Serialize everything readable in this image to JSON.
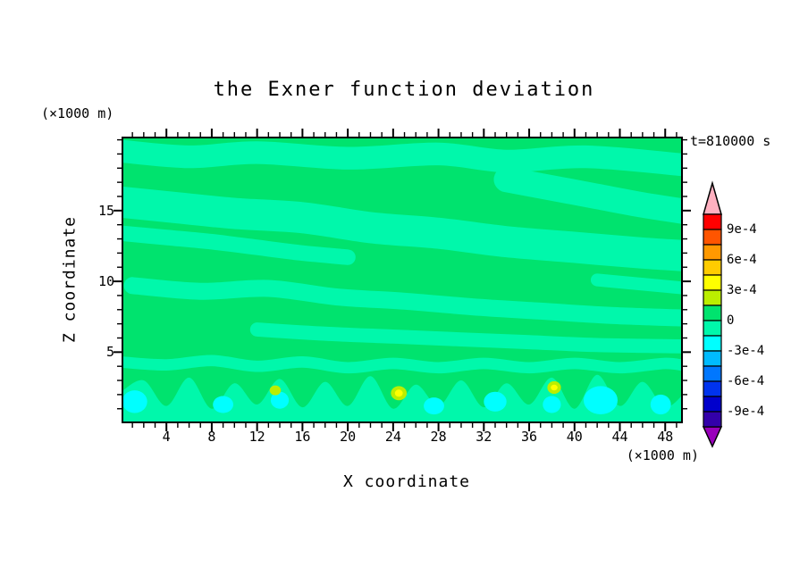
{
  "title": "the Exner function deviation",
  "time_label": "t=810000 s",
  "y_unit_label": "(×1000 m)",
  "x_unit_label": "(×1000 m)",
  "axes": {
    "x": {
      "label": "X coordinate",
      "min": 0.2,
      "max": 49.4,
      "major_ticks": [
        4,
        8,
        12,
        16,
        20,
        24,
        28,
        32,
        36,
        40,
        44,
        48
      ],
      "minor_step": 1
    },
    "y": {
      "label": "Z coordinate",
      "min": 0.1,
      "max": 20.1,
      "major_ticks": [
        5,
        10,
        15
      ],
      "minor_step": 1
    }
  },
  "colorbar": {
    "labels": [
      "9e-4",
      "6e-4",
      "3e-4",
      "0",
      "-3e-4",
      "-6e-4",
      "-9e-4"
    ],
    "range": [
      -0.00105,
      0.00105
    ],
    "step": 0.00015,
    "segment_colors_top_to_bottom": [
      "#ff0000",
      "#ff5500",
      "#ff9900",
      "#ffcc00",
      "#ffff00",
      "#bbee00",
      "#00e36e",
      "#00f8ab",
      "#00ffff",
      "#00bbff",
      "#0077ff",
      "#0033ee",
      "#0000cc",
      "#3300aa"
    ],
    "arrow_top_color": "#ffb0c0",
    "arrow_bottom_color": "#9900bb"
  },
  "chart_data": {
    "type": "heatmap",
    "title": "the Exner function deviation",
    "xlabel": "X coordinate (×1000 m)",
    "ylabel": "Z coordinate (×1000 m)",
    "time": "t=810000 s",
    "xlim": [
      0,
      50
    ],
    "ylim": [
      0,
      20
    ],
    "contour_interval": 0.00015,
    "labeled_levels": [
      -0.0009,
      -0.0006,
      -0.0003,
      0,
      0.0003,
      0.0006,
      0.0009
    ],
    "contour_levels": [
      -0.00105,
      -0.0009,
      -0.00075,
      -0.0006,
      -0.00045,
      -0.0003,
      -0.00015,
      0,
      0.00015,
      0.0003,
      0.00045,
      0.0006,
      0.00075,
      0.0009,
      0.00105
    ],
    "field_summary": "Exner function deviation near zero everywhere: background in the 0 to 1.5e-4 band (green) with wavy quasi-horizontal bands of -1.5e-4 to 0 (light spring green) tilting downward toward +x in the upper half; a scalloped light band with cyan cores (-3e-4 to -1.5e-4) and a few small positive yellow spots (3e-4 to 4.5e-4) in the lowest 3 km.",
    "palette": {
      "bg": "#00e36e",
      "band": "#00f8ab",
      "cyan": "#00ffff",
      "yellowgreen": "#bbee00",
      "yellow": "#ffff00"
    },
    "value_by_color": {
      "bg": "0 to 1.5e-4",
      "band": "-1.5e-4 to 0",
      "cyan": "-3e-4 to -1.5e-4",
      "yellowgreen": "1.5e-4 to 3e-4",
      "yellow": "3e-4 to 4.5e-4"
    },
    "features": [
      {
        "type": "stroke",
        "color": "band",
        "width": 1.6,
        "points": [
          [
            0,
            19.2
          ],
          [
            6,
            18.8
          ],
          [
            12,
            19.1
          ],
          [
            20,
            18.7
          ],
          [
            28,
            19.0
          ],
          [
            34,
            18.5
          ],
          [
            41,
            18.8
          ],
          [
            50,
            18.2
          ]
        ]
      },
      {
        "type": "stroke",
        "color": "band",
        "width": 1.8,
        "points": [
          [
            34,
            17.2
          ],
          [
            38,
            16.6
          ],
          [
            42,
            16.0
          ],
          [
            46,
            15.4
          ],
          [
            50,
            14.9
          ]
        ]
      },
      {
        "type": "stroke",
        "color": "band",
        "width": 2.2,
        "points": [
          [
            0,
            15.6
          ],
          [
            5,
            15.2
          ],
          [
            10,
            14.8
          ],
          [
            16,
            14.5
          ],
          [
            22,
            13.8
          ],
          [
            28,
            13.4
          ],
          [
            34,
            12.8
          ],
          [
            40,
            12.4
          ],
          [
            46,
            12.0
          ],
          [
            50,
            11.8
          ]
        ]
      },
      {
        "type": "stroke",
        "color": "band",
        "width": 1.1,
        "points": [
          [
            0,
            13.4
          ],
          [
            4,
            13.1
          ],
          [
            8,
            12.8
          ],
          [
            12,
            12.4
          ],
          [
            16,
            12.0
          ],
          [
            20,
            11.7
          ]
        ]
      },
      {
        "type": "stroke",
        "color": "band",
        "width": 1.2,
        "points": [
          [
            1,
            9.7
          ],
          [
            7,
            9.3
          ],
          [
            13,
            9.5
          ],
          [
            19,
            8.9
          ],
          [
            25,
            8.6
          ],
          [
            31,
            8.2
          ],
          [
            37,
            7.9
          ],
          [
            43,
            7.6
          ],
          [
            50,
            7.4
          ]
        ]
      },
      {
        "type": "stroke",
        "color": "band",
        "width": 1.0,
        "points": [
          [
            12,
            6.6
          ],
          [
            18,
            6.3
          ],
          [
            24,
            6.1
          ],
          [
            30,
            5.9
          ],
          [
            36,
            5.7
          ],
          [
            42,
            5.5
          ],
          [
            50,
            5.4
          ]
        ]
      },
      {
        "type": "stroke",
        "color": "band",
        "width": 0.9,
        "points": [
          [
            42,
            10.1
          ],
          [
            46,
            9.8
          ],
          [
            50,
            9.5
          ]
        ]
      },
      {
        "type": "stroke",
        "color": "band",
        "width": 0.8,
        "points": [
          [
            0,
            4.3
          ],
          [
            4,
            4.1
          ],
          [
            8,
            4.4
          ],
          [
            12,
            4.0
          ],
          [
            16,
            4.3
          ],
          [
            20,
            3.9
          ],
          [
            24,
            4.2
          ],
          [
            28,
            3.9
          ],
          [
            32,
            4.2
          ],
          [
            36,
            3.9
          ],
          [
            40,
            4.2
          ],
          [
            44,
            3.9
          ],
          [
            48,
            4.2
          ],
          [
            50,
            4.0
          ]
        ]
      },
      {
        "type": "area",
        "color": "band",
        "points": [
          [
            0,
            2.2
          ],
          [
            2,
            3.0
          ],
          [
            4,
            1.2
          ],
          [
            6,
            3.2
          ],
          [
            8,
            1.0
          ],
          [
            10,
            2.8
          ],
          [
            12,
            1.3
          ],
          [
            14,
            3.1
          ],
          [
            16,
            1.1
          ],
          [
            18,
            2.9
          ],
          [
            20,
            1.2
          ],
          [
            22,
            3.3
          ],
          [
            24,
            1.0
          ],
          [
            26,
            2.7
          ],
          [
            28,
            1.2
          ],
          [
            30,
            3.0
          ],
          [
            32,
            1.1
          ],
          [
            34,
            2.8
          ],
          [
            36,
            1.3
          ],
          [
            38,
            3.2
          ],
          [
            40,
            1.0
          ],
          [
            42,
            3.4
          ],
          [
            44,
            1.2
          ],
          [
            46,
            2.9
          ],
          [
            48,
            1.1
          ],
          [
            50,
            2.4
          ]
        ]
      },
      {
        "type": "ellipse",
        "color": "cyan",
        "cx": 1.2,
        "cz": 1.5,
        "rx": 1.1,
        "rz": 0.8
      },
      {
        "type": "ellipse",
        "color": "cyan",
        "cx": 9.0,
        "cz": 1.3,
        "rx": 0.9,
        "rz": 0.6
      },
      {
        "type": "ellipse",
        "color": "cyan",
        "cx": 14.0,
        "cz": 1.6,
        "rx": 0.8,
        "rz": 0.6
      },
      {
        "type": "ellipse",
        "color": "cyan",
        "cx": 27.6,
        "cz": 1.2,
        "rx": 0.9,
        "rz": 0.6
      },
      {
        "type": "ellipse",
        "color": "cyan",
        "cx": 33.0,
        "cz": 1.5,
        "rx": 1.0,
        "rz": 0.7
      },
      {
        "type": "ellipse",
        "color": "cyan",
        "cx": 38.0,
        "cz": 1.3,
        "rx": 0.8,
        "rz": 0.6
      },
      {
        "type": "ellipse",
        "color": "cyan",
        "cx": 42.3,
        "cz": 1.6,
        "rx": 1.5,
        "rz": 1.0
      },
      {
        "type": "ellipse",
        "color": "cyan",
        "cx": 47.6,
        "cz": 1.3,
        "rx": 0.9,
        "rz": 0.7
      },
      {
        "type": "ellipse",
        "color": "yellowgreen",
        "cx": 13.6,
        "cz": 2.3,
        "rx": 0.5,
        "rz": 0.35
      },
      {
        "type": "ellipse",
        "color": "yellowgreen",
        "cx": 24.5,
        "cz": 2.1,
        "rx": 0.7,
        "rz": 0.5
      },
      {
        "type": "ellipse",
        "color": "yellow",
        "cx": 24.5,
        "cz": 2.1,
        "rx": 0.35,
        "rz": 0.25
      },
      {
        "type": "ellipse",
        "color": "yellowgreen",
        "cx": 38.2,
        "cz": 2.5,
        "rx": 0.6,
        "rz": 0.45
      },
      {
        "type": "ellipse",
        "color": "yellow",
        "cx": 38.2,
        "cz": 2.5,
        "rx": 0.3,
        "rz": 0.2
      }
    ]
  }
}
